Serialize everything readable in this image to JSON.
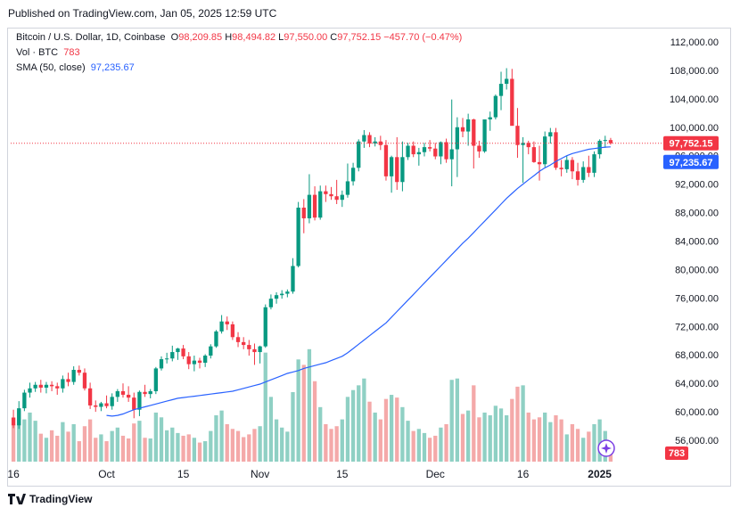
{
  "header": {
    "published": "Published on TradingView.com, Jan 05, 2025 12:59 UTC"
  },
  "legend": {
    "symbol": "Bitcoin / U.S. Dollar, 1D, Coinbase",
    "o_label": "O",
    "o_val": "98,209.85",
    "h_label": "H",
    "h_val": "98,494.82",
    "l_label": "L",
    "l_val": "97,550.00",
    "c_label": "C",
    "c_val": "97,752.15",
    "change": "−457.70 (−0.47%)",
    "vol_label": "Vol · BTC",
    "vol_val": "783",
    "sma_label": "SMA (50, close)",
    "sma_val": "97,235.67"
  },
  "footer": {
    "brand": "TradingView"
  },
  "colors": {
    "up": "#089981",
    "down": "#f23645",
    "sma": "#2962ff",
    "vol_up": "#8fd0c4",
    "vol_down": "#f4a9a9"
  },
  "chart_data": {
    "type": "candlestick",
    "title": "Bitcoin / U.S. Dollar, 1D, Coinbase",
    "x_tick_labels": [
      "16",
      "Oct",
      "15",
      "Nov",
      "15",
      "Dec",
      "16",
      "2025"
    ],
    "y_tick_labels": [
      "56,000.00",
      "60,000.00",
      "64,000.00",
      "68,000.00",
      "72,000.00",
      "76,000.00",
      "80,000.00",
      "84,000.00",
      "88,000.00",
      "92,000.00",
      "96,000.00",
      "100,000.00",
      "104,000.00",
      "108,000.00",
      "112,000.00"
    ],
    "ylim": [
      53000,
      114000
    ],
    "price_label": "97,752.15",
    "sma_label": "97,235.67",
    "volume_label": "783",
    "candles": [
      {
        "o": 59200,
        "h": 60300,
        "l": 57700,
        "c": 58100,
        "v": 55
      },
      {
        "o": 58100,
        "h": 61500,
        "l": 57600,
        "c": 60500,
        "v": 75
      },
      {
        "o": 60500,
        "h": 63100,
        "l": 60100,
        "c": 62700,
        "v": 62
      },
      {
        "o": 62700,
        "h": 64100,
        "l": 62000,
        "c": 63300,
        "v": 72
      },
      {
        "o": 63300,
        "h": 64200,
        "l": 62800,
        "c": 63800,
        "v": 60
      },
      {
        "o": 63800,
        "h": 64500,
        "l": 62700,
        "c": 63400,
        "v": 41
      },
      {
        "o": 63400,
        "h": 64200,
        "l": 62600,
        "c": 63800,
        "v": 35
      },
      {
        "o": 63800,
        "h": 64300,
        "l": 62900,
        "c": 63600,
        "v": 46
      },
      {
        "o": 63600,
        "h": 64100,
        "l": 62400,
        "c": 63300,
        "v": 38
      },
      {
        "o": 63300,
        "h": 65100,
        "l": 62700,
        "c": 64600,
        "v": 58
      },
      {
        "o": 64600,
        "h": 65500,
        "l": 63600,
        "c": 64200,
        "v": 44
      },
      {
        "o": 64200,
        "h": 66400,
        "l": 63800,
        "c": 65900,
        "v": 55
      },
      {
        "o": 65900,
        "h": 66500,
        "l": 65100,
        "c": 65500,
        "v": 30
      },
      {
        "o": 65500,
        "h": 66100,
        "l": 63000,
        "c": 63300,
        "v": 52
      },
      {
        "o": 63300,
        "h": 64100,
        "l": 60400,
        "c": 60900,
        "v": 62
      },
      {
        "o": 60900,
        "h": 61600,
        "l": 60000,
        "c": 60700,
        "v": 35
      },
      {
        "o": 60700,
        "h": 61400,
        "l": 60100,
        "c": 61200,
        "v": 40
      },
      {
        "o": 61200,
        "h": 62300,
        "l": 60500,
        "c": 60800,
        "v": 30
      },
      {
        "o": 60800,
        "h": 62600,
        "l": 60300,
        "c": 62100,
        "v": 45
      },
      {
        "o": 62100,
        "h": 63200,
        "l": 61400,
        "c": 62900,
        "v": 50
      },
      {
        "o": 62900,
        "h": 64000,
        "l": 62000,
        "c": 62400,
        "v": 38
      },
      {
        "o": 62400,
        "h": 63600,
        "l": 61400,
        "c": 62000,
        "v": 34
      },
      {
        "o": 62000,
        "h": 62700,
        "l": 59100,
        "c": 60300,
        "v": 56
      },
      {
        "o": 60300,
        "h": 63000,
        "l": 59400,
        "c": 62800,
        "v": 60
      },
      {
        "o": 62800,
        "h": 63800,
        "l": 62100,
        "c": 62500,
        "v": 35
      },
      {
        "o": 62500,
        "h": 63200,
        "l": 61900,
        "c": 62900,
        "v": 34
      },
      {
        "o": 62900,
        "h": 66300,
        "l": 62500,
        "c": 66100,
        "v": 72
      },
      {
        "o": 66100,
        "h": 67800,
        "l": 65800,
        "c": 67400,
        "v": 65
      },
      {
        "o": 67400,
        "h": 68300,
        "l": 66800,
        "c": 67500,
        "v": 46
      },
      {
        "o": 67500,
        "h": 69300,
        "l": 67100,
        "c": 68400,
        "v": 50
      },
      {
        "o": 68400,
        "h": 69000,
        "l": 67300,
        "c": 68900,
        "v": 42
      },
      {
        "o": 68900,
        "h": 69400,
        "l": 67400,
        "c": 67800,
        "v": 38
      },
      {
        "o": 67800,
        "h": 68400,
        "l": 66000,
        "c": 66700,
        "v": 40
      },
      {
        "o": 66700,
        "h": 67900,
        "l": 65700,
        "c": 67200,
        "v": 35
      },
      {
        "o": 67200,
        "h": 67600,
        "l": 66100,
        "c": 66900,
        "v": 28
      },
      {
        "o": 66900,
        "h": 68100,
        "l": 66300,
        "c": 67900,
        "v": 30
      },
      {
        "o": 67900,
        "h": 69500,
        "l": 67500,
        "c": 69200,
        "v": 45
      },
      {
        "o": 69200,
        "h": 71500,
        "l": 69000,
        "c": 71300,
        "v": 68
      },
      {
        "o": 71300,
        "h": 73600,
        "l": 71000,
        "c": 72700,
        "v": 75
      },
      {
        "o": 72700,
        "h": 73400,
        "l": 71500,
        "c": 72300,
        "v": 55
      },
      {
        "o": 72300,
        "h": 72700,
        "l": 70100,
        "c": 70500,
        "v": 48
      },
      {
        "o": 70500,
        "h": 71200,
        "l": 69100,
        "c": 69800,
        "v": 45
      },
      {
        "o": 69800,
        "h": 70500,
        "l": 68800,
        "c": 69400,
        "v": 36
      },
      {
        "o": 69400,
        "h": 70100,
        "l": 67900,
        "c": 68800,
        "v": 40
      },
      {
        "o": 68800,
        "h": 69600,
        "l": 66600,
        "c": 68400,
        "v": 48
      },
      {
        "o": 68400,
        "h": 69300,
        "l": 66800,
        "c": 69200,
        "v": 52
      },
      {
        "o": 69200,
        "h": 75100,
        "l": 69000,
        "c": 74700,
        "v": 160
      },
      {
        "o": 74700,
        "h": 76500,
        "l": 74400,
        "c": 75900,
        "v": 95
      },
      {
        "o": 75900,
        "h": 76800,
        "l": 75200,
        "c": 76400,
        "v": 62
      },
      {
        "o": 76400,
        "h": 77100,
        "l": 75900,
        "c": 76600,
        "v": 50
      },
      {
        "o": 76600,
        "h": 77200,
        "l": 76100,
        "c": 76900,
        "v": 44
      },
      {
        "o": 76900,
        "h": 81600,
        "l": 76600,
        "c": 80500,
        "v": 102
      },
      {
        "o": 80500,
        "h": 89500,
        "l": 80300,
        "c": 88700,
        "v": 150
      },
      {
        "o": 88700,
        "h": 89900,
        "l": 85100,
        "c": 87200,
        "v": 142
      },
      {
        "o": 87200,
        "h": 93400,
        "l": 86500,
        "c": 90500,
        "v": 165
      },
      {
        "o": 90500,
        "h": 91700,
        "l": 86900,
        "c": 87300,
        "v": 118
      },
      {
        "o": 87300,
        "h": 91800,
        "l": 87000,
        "c": 91000,
        "v": 80
      },
      {
        "o": 91000,
        "h": 91800,
        "l": 89500,
        "c": 90600,
        "v": 55
      },
      {
        "o": 90600,
        "h": 91600,
        "l": 89800,
        "c": 90300,
        "v": 48
      },
      {
        "o": 90300,
        "h": 92600,
        "l": 89200,
        "c": 89800,
        "v": 52
      },
      {
        "o": 89800,
        "h": 91100,
        "l": 88800,
        "c": 90500,
        "v": 62
      },
      {
        "o": 90500,
        "h": 94900,
        "l": 90100,
        "c": 92400,
        "v": 95
      },
      {
        "o": 92400,
        "h": 95000,
        "l": 91800,
        "c": 94300,
        "v": 105
      },
      {
        "o": 94300,
        "h": 98300,
        "l": 93800,
        "c": 98000,
        "v": 112
      },
      {
        "o": 98000,
        "h": 99600,
        "l": 97100,
        "c": 98900,
        "v": 122
      },
      {
        "o": 98900,
        "h": 99300,
        "l": 97200,
        "c": 97700,
        "v": 88
      },
      {
        "o": 97700,
        "h": 98600,
        "l": 97300,
        "c": 98000,
        "v": 72
      },
      {
        "o": 98000,
        "h": 98800,
        "l": 96800,
        "c": 97500,
        "v": 62
      },
      {
        "o": 97500,
        "h": 98200,
        "l": 92500,
        "c": 93100,
        "v": 92
      },
      {
        "o": 93100,
        "h": 96000,
        "l": 90800,
        "c": 95800,
        "v": 98
      },
      {
        "o": 95800,
        "h": 98600,
        "l": 91200,
        "c": 92300,
        "v": 94
      },
      {
        "o": 92300,
        "h": 98000,
        "l": 91000,
        "c": 95800,
        "v": 80
      },
      {
        "o": 95800,
        "h": 97800,
        "l": 95400,
        "c": 97400,
        "v": 60
      },
      {
        "o": 97400,
        "h": 98000,
        "l": 95800,
        "c": 96200,
        "v": 45
      },
      {
        "o": 96200,
        "h": 97100,
        "l": 94600,
        "c": 96500,
        "v": 48
      },
      {
        "o": 96500,
        "h": 97800,
        "l": 95900,
        "c": 97200,
        "v": 42
      },
      {
        "o": 97200,
        "h": 98200,
        "l": 96600,
        "c": 97000,
        "v": 35
      },
      {
        "o": 97000,
        "h": 97800,
        "l": 95500,
        "c": 95900,
        "v": 38
      },
      {
        "o": 95900,
        "h": 98000,
        "l": 94800,
        "c": 97900,
        "v": 50
      },
      {
        "o": 97900,
        "h": 98400,
        "l": 95000,
        "c": 95500,
        "v": 55
      },
      {
        "o": 95500,
        "h": 103900,
        "l": 91700,
        "c": 96900,
        "v": 120
      },
      {
        "o": 96900,
        "h": 101400,
        "l": 93000,
        "c": 100000,
        "v": 122
      },
      {
        "o": 100000,
        "h": 101300,
        "l": 98600,
        "c": 99400,
        "v": 70
      },
      {
        "o": 99400,
        "h": 101900,
        "l": 97400,
        "c": 101100,
        "v": 75
      },
      {
        "o": 101100,
        "h": 101200,
        "l": 94200,
        "c": 97400,
        "v": 112
      },
      {
        "o": 97400,
        "h": 98100,
        "l": 95700,
        "c": 96600,
        "v": 65
      },
      {
        "o": 96600,
        "h": 101100,
        "l": 96400,
        "c": 101100,
        "v": 72
      },
      {
        "o": 101100,
        "h": 102200,
        "l": 99500,
        "c": 101400,
        "v": 68
      },
      {
        "o": 101400,
        "h": 104600,
        "l": 101100,
        "c": 104400,
        "v": 82
      },
      {
        "o": 104400,
        "h": 107800,
        "l": 102400,
        "c": 106100,
        "v": 78
      },
      {
        "o": 106100,
        "h": 108300,
        "l": 105300,
        "c": 106800,
        "v": 68
      },
      {
        "o": 106800,
        "h": 108200,
        "l": 100300,
        "c": 100200,
        "v": 92
      },
      {
        "o": 100200,
        "h": 102700,
        "l": 95700,
        "c": 97500,
        "v": 110
      },
      {
        "o": 97500,
        "h": 98600,
        "l": 92200,
        "c": 97800,
        "v": 112
      },
      {
        "o": 97800,
        "h": 98100,
        "l": 96200,
        "c": 97200,
        "v": 72
      },
      {
        "o": 97200,
        "h": 98000,
        "l": 95000,
        "c": 95100,
        "v": 62
      },
      {
        "o": 95100,
        "h": 97400,
        "l": 92500,
        "c": 94800,
        "v": 65
      },
      {
        "o": 94800,
        "h": 99400,
        "l": 94400,
        "c": 98700,
        "v": 72
      },
      {
        "o": 98700,
        "h": 99900,
        "l": 97700,
        "c": 99300,
        "v": 58
      },
      {
        "o": 99300,
        "h": 99900,
        "l": 94000,
        "c": 94300,
        "v": 68
      },
      {
        "o": 94300,
        "h": 95400,
        "l": 93100,
        "c": 94100,
        "v": 62
      },
      {
        "o": 94100,
        "h": 96000,
        "l": 93600,
        "c": 95400,
        "v": 40
      },
      {
        "o": 95400,
        "h": 95800,
        "l": 92700,
        "c": 93800,
        "v": 55
      },
      {
        "o": 93800,
        "h": 95000,
        "l": 91800,
        "c": 92600,
        "v": 48
      },
      {
        "o": 92600,
        "h": 95200,
        "l": 92200,
        "c": 94400,
        "v": 35
      },
      {
        "o": 94400,
        "h": 96000,
        "l": 93000,
        "c": 93600,
        "v": 44
      },
      {
        "o": 93600,
        "h": 96600,
        "l": 93000,
        "c": 96200,
        "v": 55
      },
      {
        "o": 96200,
        "h": 98300,
        "l": 95600,
        "c": 98100,
        "v": 62
      },
      {
        "o": 98100,
        "h": 98800,
        "l": 97100,
        "c": 98200,
        "v": 45
      },
      {
        "o": 98200,
        "h": 98500,
        "l": 97550,
        "c": 97750,
        "v": 25
      }
    ],
    "sma": [
      59500,
      59400,
      59500,
      59700,
      60000,
      60300,
      60500,
      60700,
      60900,
      61100,
      61300,
      61500,
      61700,
      61900,
      62000,
      62100,
      62200,
      62300,
      62400,
      62500,
      62600,
      62700,
      62800,
      62900,
      63100,
      63300,
      63500,
      63700,
      63900,
      64200,
      64500,
      64800,
      65100,
      65400,
      65600,
      65800,
      66100,
      66300,
      66500,
      66700,
      66900,
      67200,
      67500,
      67800,
      68300,
      68900,
      69500,
      70100,
      70700,
      71300,
      71900,
      72500,
      73300,
      74100,
      74900,
      75700,
      76500,
      77300,
      78100,
      78900,
      79700,
      80500,
      81300,
      82100,
      82900,
      83700,
      84400,
      85200,
      86000,
      86800,
      87600,
      88400,
      89200,
      90000,
      90700,
      91400,
      92000,
      92600,
      93200,
      93800,
      94300,
      94700,
      95200,
      95600,
      96000,
      96300,
      96500,
      96700,
      96900,
      97000,
      97100,
      97200,
      97240
    ]
  }
}
